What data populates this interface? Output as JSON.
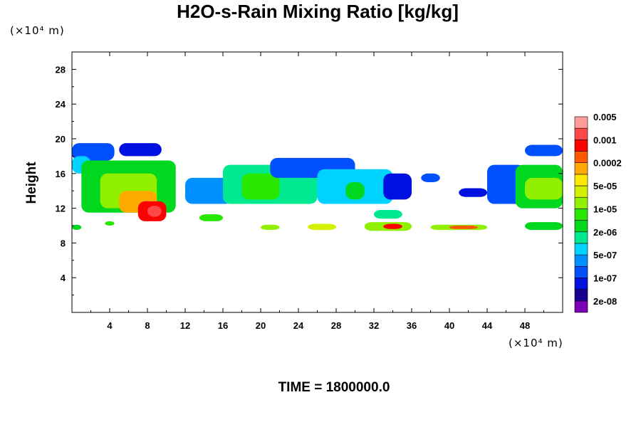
{
  "chart_data": {
    "type": "heatmap",
    "title": "H2O-s-Rain Mixing Ratio [kg/kg]",
    "y_unit": "(×10⁴ m)",
    "x_unit": "(×10⁴ m)",
    "ylabel": "Height",
    "footer": "TIME = 1800000.0",
    "xlim": [
      0,
      52
    ],
    "ylim": [
      0,
      30
    ],
    "x_ticks": [
      4,
      8,
      12,
      16,
      20,
      24,
      28,
      32,
      36,
      40,
      44,
      48
    ],
    "y_ticks": [
      4,
      8,
      12,
      16,
      20,
      24,
      28
    ],
    "colorbar": {
      "colors": [
        "#7a00b4",
        "#1a0090",
        "#0010e0",
        "#0050ff",
        "#0090ff",
        "#00d2ff",
        "#00e890",
        "#00d820",
        "#28e800",
        "#90f000",
        "#d2f000",
        "#ffe800",
        "#ffaa00",
        "#ff5a00",
        "#ff0000",
        "#ff4848",
        "#ff9c9c"
      ],
      "labels": [
        "2e-08",
        "1e-07",
        "5e-07",
        "2e-06",
        "1e-05",
        "5e-05",
        "0.0002",
        "0.001",
        "0.005"
      ]
    },
    "regions": [
      {
        "x": [
          0,
          4.5
        ],
        "y": [
          17.5,
          19.5
        ],
        "level": 3
      },
      {
        "x": [
          0,
          2
        ],
        "y": [
          16,
          18
        ],
        "level": 5
      },
      {
        "x": [
          1,
          11
        ],
        "y": [
          11.5,
          17.5
        ],
        "level": 7
      },
      {
        "x": [
          3,
          9
        ],
        "y": [
          12,
          16
        ],
        "level": 9
      },
      {
        "x": [
          5,
          9
        ],
        "y": [
          11.5,
          14
        ],
        "level": 12
      },
      {
        "x": [
          7,
          10
        ],
        "y": [
          10.5,
          12.8
        ],
        "level": 14
      },
      {
        "x": [
          8,
          9.5
        ],
        "y": [
          11,
          12.3
        ],
        "level": 15
      },
      {
        "x": [
          5,
          9.5
        ],
        "y": [
          18,
          19.5
        ],
        "level": 2
      },
      {
        "x": [
          12,
          17
        ],
        "y": [
          12.5,
          15.5
        ],
        "level": 4
      },
      {
        "x": [
          16,
          26
        ],
        "y": [
          12.5,
          17
        ],
        "level": 6
      },
      {
        "x": [
          18,
          22
        ],
        "y": [
          13,
          16
        ],
        "level": 8
      },
      {
        "x": [
          21,
          30
        ],
        "y": [
          15.5,
          17.8
        ],
        "level": 3
      },
      {
        "x": [
          26,
          34
        ],
        "y": [
          12.5,
          16.5
        ],
        "level": 5
      },
      {
        "x": [
          29,
          31
        ],
        "y": [
          13,
          15
        ],
        "level": 7
      },
      {
        "x": [
          33,
          36
        ],
        "y": [
          13,
          16
        ],
        "level": 2
      },
      {
        "x": [
          37,
          39
        ],
        "y": [
          15,
          16
        ],
        "level": 3
      },
      {
        "x": [
          41,
          44
        ],
        "y": [
          13.3,
          14.3
        ],
        "level": 2
      },
      {
        "x": [
          44,
          48
        ],
        "y": [
          12.5,
          17
        ],
        "level": 3
      },
      {
        "x": [
          47,
          52
        ],
        "y": [
          12,
          17
        ],
        "level": 7
      },
      {
        "x": [
          48,
          52
        ],
        "y": [
          13,
          15.5
        ],
        "level": 9
      },
      {
        "x": [
          48,
          52
        ],
        "y": [
          18,
          19.3
        ],
        "level": 3
      },
      {
        "x": [
          0,
          1
        ],
        "y": [
          9.5,
          10.1
        ],
        "level": 7
      },
      {
        "x": [
          3.5,
          4.5
        ],
        "y": [
          10,
          10.5
        ],
        "level": 8
      },
      {
        "x": [
          13.5,
          16
        ],
        "y": [
          10.5,
          11.3
        ],
        "level": 8
      },
      {
        "x": [
          20,
          22
        ],
        "y": [
          9.5,
          10.1
        ],
        "level": 9
      },
      {
        "x": [
          25,
          28
        ],
        "y": [
          9.5,
          10.2
        ],
        "level": 10
      },
      {
        "x": [
          31,
          36
        ],
        "y": [
          9.4,
          10.4
        ],
        "level": 9
      },
      {
        "x": [
          33,
          35
        ],
        "y": [
          9.6,
          10.2
        ],
        "level": 14
      },
      {
        "x": [
          32,
          35
        ],
        "y": [
          10.8,
          11.8
        ],
        "level": 6
      },
      {
        "x": [
          38,
          44
        ],
        "y": [
          9.5,
          10.1
        ],
        "level": 9
      },
      {
        "x": [
          40,
          43
        ],
        "y": [
          9.6,
          10
        ],
        "level": 13
      },
      {
        "x": [
          48,
          52
        ],
        "y": [
          9.5,
          10.4
        ],
        "level": 7
      }
    ]
  }
}
